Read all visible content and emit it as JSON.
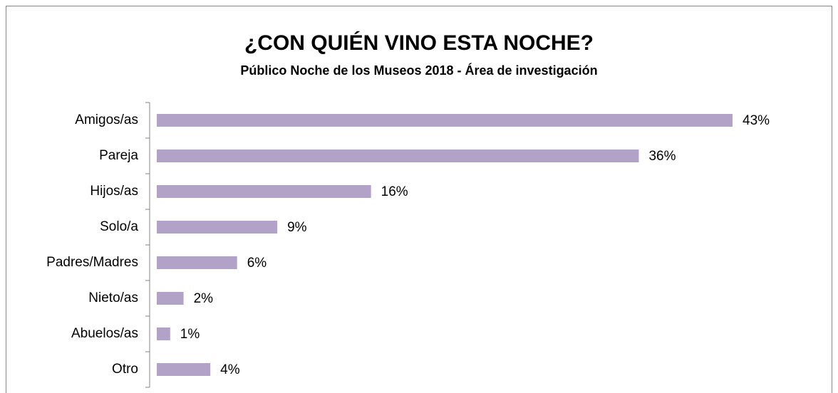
{
  "chart_data": {
    "type": "bar",
    "orientation": "horizontal",
    "title": "¿CON QUIÉN VINO ESTA NOCHE?",
    "subtitle": "Público Noche de los Museos 2018 - Área de investigación",
    "categories": [
      "Amigos/as",
      "Pareja",
      "Hijos/as",
      "Solo/a",
      "Padres/Madres",
      "Nieto/as",
      "Abuelos/as",
      "Otro"
    ],
    "values": [
      43,
      36,
      16,
      9,
      6,
      2,
      1,
      4
    ],
    "value_labels": [
      "43%",
      "36%",
      "16%",
      "9%",
      "6%",
      "2%",
      "1%",
      "4%"
    ],
    "color": "#b3a2c7"
  }
}
